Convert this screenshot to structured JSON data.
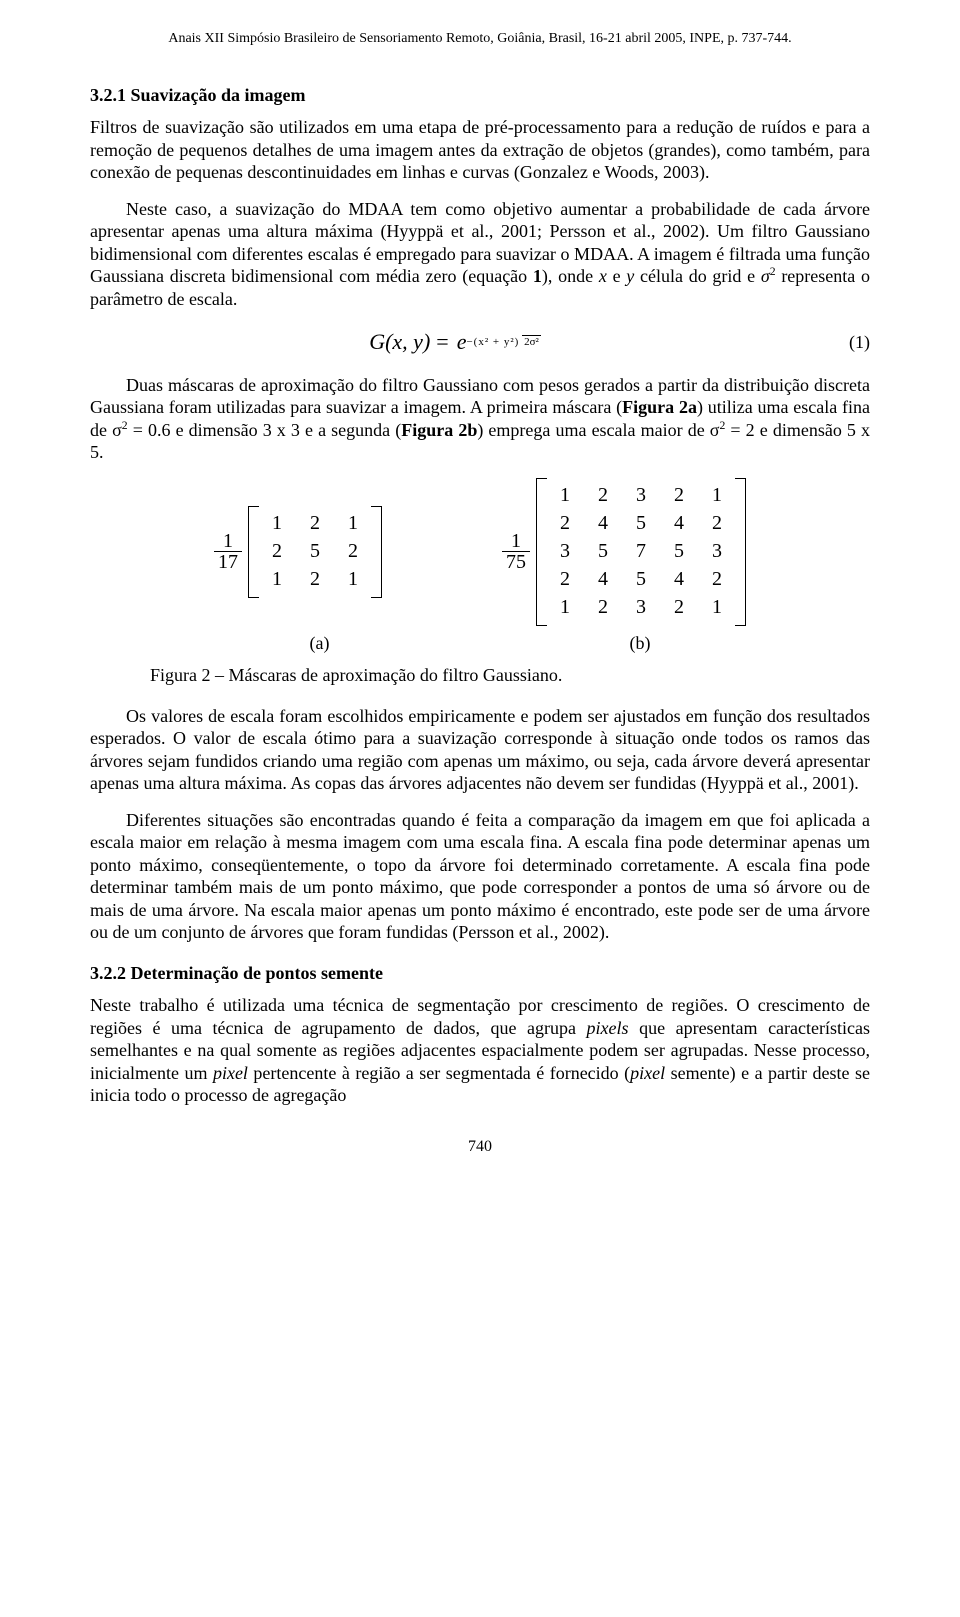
{
  "running_head": "Anais XII Simpósio Brasileiro de Sensoriamento Remoto, Goiânia, Brasil, 16-21 abril 2005, INPE, p. 737-744.",
  "section_321": {
    "title": "3.2.1 Suavização da imagem",
    "p1": "Filtros de suavização são utilizados em uma etapa de pré-processamento para a redução de ruídos e para a remoção de pequenos detalhes de uma imagem antes da extração de objetos (grandes), como também, para conexão de pequenas descontinuidades em linhas e curvas (Gonzalez e Woods, 2003).",
    "p2a": "Neste caso, a suavização do MDAA tem como objetivo aumentar a probabilidade de cada árvore apresentar apenas uma altura máxima (Hyyppä et al., 2001; Persson et al., 2002). Um filtro Gaussiano bidimensional com diferentes escalas é empregado para suavizar o MDAA. A imagem é filtrada uma função Gaussiana discreta bidimensional com média zero (equação ",
    "p2b": "), onde ",
    "p2c": " e ",
    "p2d": " célula do grid e ",
    "p2e": " representa o parâmetro de escala.",
    "eq_label": "1",
    "eq_num": "(1)",
    "eq_lhs": "G(x, y)",
    "eq_e": "e",
    "eq_exp_num": "−(x² + y²)",
    "eq_exp_den": "2σ²",
    "p3a": "Duas máscaras de aproximação do filtro Gaussiano com pesos gerados a partir da distribuição discreta Gaussiana foram utilizadas para suavizar a imagem. A primeira máscara (",
    "p3_fig2a": "Figura 2a",
    "p3b": ") utiliza uma escala fina de σ",
    "p3c": " = 0.6 e dimensão 3 x 3 e a segunda (",
    "p3_fig2b": "Figura 2b",
    "p3d": ") emprega uma escala maior de σ",
    "p3e": " = 2 e dimensão 5 x 5.",
    "matrixA": {
      "frac_num": "1",
      "frac_den": "17",
      "rows": [
        [
          "1",
          "2",
          "1"
        ],
        [
          "2",
          "5",
          "2"
        ],
        [
          "1",
          "2",
          "1"
        ]
      ],
      "label": "(a)"
    },
    "matrixB": {
      "frac_num": "1",
      "frac_den": "75",
      "rows": [
        [
          "1",
          "2",
          "3",
          "2",
          "1"
        ],
        [
          "2",
          "4",
          "5",
          "4",
          "2"
        ],
        [
          "3",
          "5",
          "7",
          "5",
          "3"
        ],
        [
          "2",
          "4",
          "5",
          "4",
          "2"
        ],
        [
          "1",
          "2",
          "3",
          "2",
          "1"
        ]
      ],
      "label": "(b)"
    },
    "fig_caption": "Figura 2 – Máscaras de aproximação do filtro Gaussiano.",
    "p4": "Os valores de escala foram escolhidos empiricamente e podem ser ajustados em função dos resultados esperados. O valor de escala ótimo para a suavização corresponde à situação onde todos os ramos das árvores sejam fundidos criando uma região com apenas um máximo, ou seja, cada árvore deverá apresentar apenas uma altura máxima. As copas das árvores adjacentes não devem ser fundidas (Hyyppä et al., 2001).",
    "p5": "Diferentes situações são encontradas quando é feita a comparação da imagem em que foi aplicada a escala maior em relação à mesma imagem com uma escala fina. A escala fina pode determinar apenas um ponto máximo, conseqüentemente, o topo da árvore foi determinado corretamente. A escala fina pode determinar também mais de um ponto máximo, que pode corresponder a pontos de uma só árvore ou de mais de uma árvore. Na escala maior apenas um ponto máximo é encontrado, este pode ser de uma árvore ou de um conjunto de árvores que foram fundidas (Persson et al., 2002)."
  },
  "section_322": {
    "title": "3.2.2 Determinação de pontos semente",
    "p1a": "Neste trabalho é utilizada uma técnica de segmentação por crescimento de regiões. O crescimento de regiões é uma técnica de agrupamento de dados, que agrupa ",
    "p1_pixels": "pixels",
    "p1b": " que apresentam características semelhantes e na qual somente as regiões adjacentes espacialmente podem ser agrupadas. Nesse processo, inicialmente um ",
    "p1_pixel1": "pixel",
    "p1c": " pertencente à região a ser segmentada é fornecido (",
    "p1_pixel2": "pixel",
    "p1d": " semente) e a partir deste se inicia todo o processo de agregação"
  },
  "italic_vars": {
    "x": "x",
    "y": "y",
    "sigma": "σ",
    "two": "2"
  },
  "page_num": "740"
}
